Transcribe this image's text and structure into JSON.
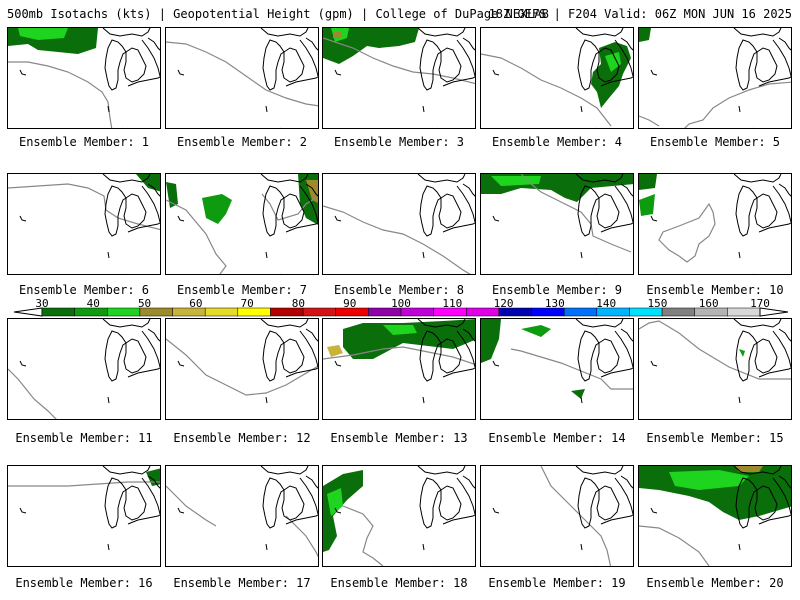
{
  "header": {
    "left": "500mb Isotachs (kts) | Geopotential Height (gpm) | College of DuPage NEXLAB",
    "right": "18Z GEFS | F204 Valid: 06Z MON JUN 16 2025"
  },
  "colorbar": {
    "tick_labels": [
      "30",
      "40",
      "50",
      "60",
      "70",
      "80",
      "90",
      "100",
      "110",
      "120",
      "130",
      "140",
      "150",
      "160",
      "170"
    ],
    "colors": [
      "#0a6e0a",
      "#0f9b0f",
      "#1fd41f",
      "#9c8a2c",
      "#c8b43a",
      "#e6dc28",
      "#ffff00",
      "#b30000",
      "#d21414",
      "#ee0000",
      "#9000a8",
      "#c000d8",
      "#ff00ff",
      "#e000e8",
      "#0000b0",
      "#0000ff",
      "#0070ff",
      "#00b4ff",
      "#00e0ff",
      "#808080",
      "#b4b4b4",
      "#d8d8d8"
    ]
  },
  "panels": [
    {
      "label": "Ensemble Member: 1"
    },
    {
      "label": "Ensemble Member: 2"
    },
    {
      "label": "Ensemble Member: 3"
    },
    {
      "label": "Ensemble Member: 4"
    },
    {
      "label": "Ensemble Member: 5"
    },
    {
      "label": "Ensemble Member: 6"
    },
    {
      "label": "Ensemble Member: 7"
    },
    {
      "label": "Ensemble Member: 8"
    },
    {
      "label": "Ensemble Member: 9"
    },
    {
      "label": "Ensemble Member: 10"
    },
    {
      "label": "Ensemble Member: 11"
    },
    {
      "label": "Ensemble Member: 12"
    },
    {
      "label": "Ensemble Member: 13"
    },
    {
      "label": "Ensemble Member: 14"
    },
    {
      "label": "Ensemble Member: 15"
    },
    {
      "label": "Ensemble Member: 16"
    },
    {
      "label": "Ensemble Member: 17"
    },
    {
      "label": "Ensemble Member: 18"
    },
    {
      "label": "Ensemble Member: 19"
    },
    {
      "label": "Ensemble Member: 20"
    }
  ]
}
